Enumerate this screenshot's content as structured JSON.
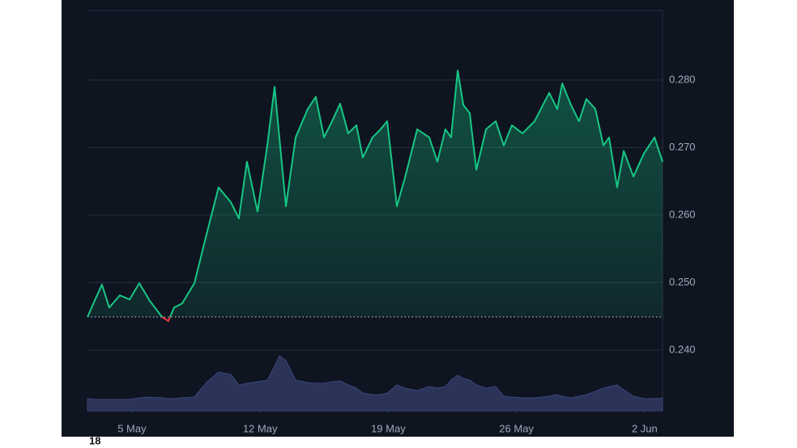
{
  "chart_data": {
    "type": "line",
    "x": [
      1.57,
      2.01,
      2.36,
      2.76,
      3.34,
      3.87,
      4.4,
      4.97,
      5.64,
      5.99,
      6.3,
      6.74,
      7.41,
      8.07,
      8.73,
      9.4,
      9.84,
      10.28,
      10.86,
      11.39,
      11.79,
      12.05,
      12.41,
      12.94,
      13.6,
      14.04,
      14.49,
      14.93,
      15.37,
      15.81,
      16.26,
      16.61,
      17.14,
      17.58,
      17.94,
      18.47,
      18.91,
      19.58,
      20.24,
      20.68,
      21.12,
      21.43,
      21.79,
      22.1,
      22.45,
      22.81,
      23.34,
      23.87,
      24.31,
      24.75,
      25.33,
      25.99,
      26.79,
      27.23,
      27.5,
      27.98,
      28.42,
      28.82,
      29.31,
      29.75,
      30.06,
      30.5,
      30.86,
      31.39,
      31.96,
      32.54,
      32.98
    ],
    "series": [
      {
        "color": "#16c784",
        "below_color": "#ea3943",
        "values": [
          0.2449,
          0.2476,
          0.2497,
          0.2463,
          0.2481,
          0.2475,
          0.2499,
          0.2473,
          0.2449,
          0.2443,
          0.2463,
          0.2469,
          0.2499,
          0.2571,
          0.2641,
          0.2619,
          0.2595,
          0.2679,
          0.2605,
          0.2703,
          0.279,
          0.2715,
          0.2613,
          0.2715,
          0.2757,
          0.2775,
          0.2715,
          0.2739,
          0.2765,
          0.2721,
          0.2733,
          0.2685,
          0.2715,
          0.2727,
          0.2739,
          0.2613,
          0.2655,
          0.2727,
          0.2715,
          0.2679,
          0.2727,
          0.2715,
          0.2814,
          0.2763,
          0.2751,
          0.2667,
          0.2727,
          0.2739,
          0.2703,
          0.2733,
          0.2721,
          0.2739,
          0.2781,
          0.2757,
          0.2795,
          0.2763,
          0.2739,
          0.2772,
          0.2757,
          0.2703,
          0.2715,
          0.2641,
          0.2695,
          0.2657,
          0.2691,
          0.2715,
          0.2679
        ]
      },
      {
        "color": "#2b3358",
        "values": [
          15,
          14,
          14,
          14,
          14,
          14,
          16,
          17,
          16,
          15,
          15,
          16,
          17,
          35,
          48,
          45,
          32,
          34,
          36,
          38,
          55,
          68,
          62,
          38,
          35,
          34,
          34,
          36,
          37,
          32,
          28,
          22,
          20,
          20,
          22,
          32,
          28,
          25,
          30,
          28,
          30,
          38,
          44,
          40,
          38,
          32,
          28,
          30,
          18,
          17,
          16,
          16,
          18,
          20,
          18,
          16,
          18,
          20,
          24,
          28,
          30,
          32,
          26,
          18,
          15,
          15,
          16
        ]
      }
    ],
    "baseline": 0.2449,
    "volume_lim": [
      0,
      100
    ],
    "xlim": [
      1.57,
      32.98
    ],
    "xticks": [
      {
        "value": 4,
        "label": "5 May"
      },
      {
        "value": 11,
        "label": "12 May"
      },
      {
        "value": 18,
        "label": "19 May"
      },
      {
        "value": 25,
        "label": "26 May"
      },
      {
        "value": 32,
        "label": "2 Jun"
      }
    ],
    "ylim": [
      0.231,
      0.2903
    ],
    "yticks": [
      {
        "value": 0.24,
        "label": "0.240"
      },
      {
        "value": 0.25,
        "label": "0.250"
      },
      {
        "value": 0.26,
        "label": "0.260"
      },
      {
        "value": 0.27,
        "label": "0.270"
      },
      {
        "value": 0.28,
        "label": "0.280"
      }
    ],
    "grid": true,
    "footnote": "18"
  }
}
